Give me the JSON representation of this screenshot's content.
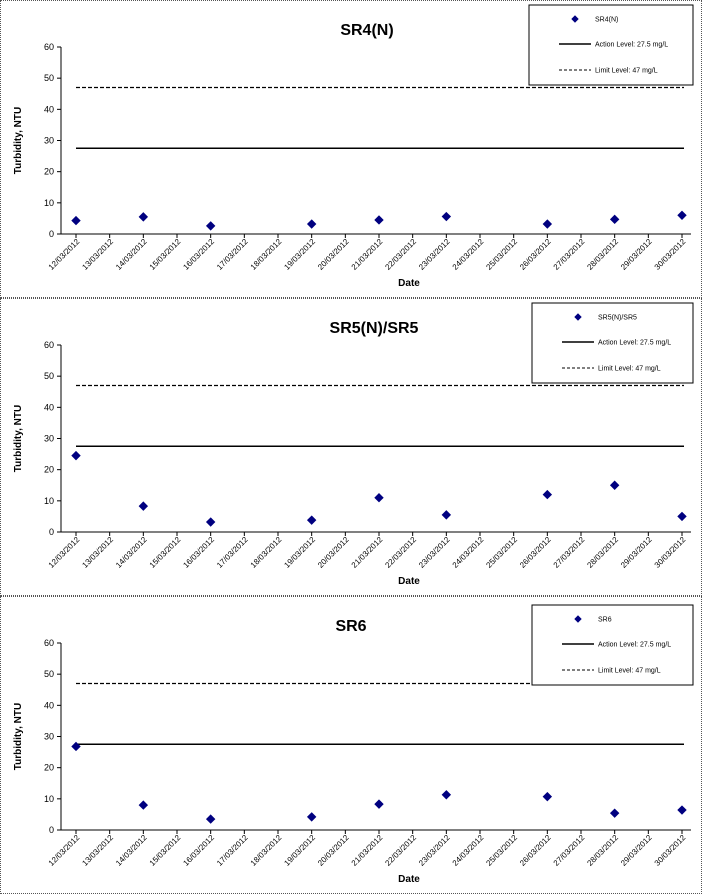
{
  "chart_data": [
    {
      "type": "scatter",
      "title": "SR4(N)",
      "xlabel": "Date",
      "ylabel": "Turbidity, NTU",
      "ylim": [
        0,
        60
      ],
      "yticks": [
        0,
        10,
        20,
        30,
        40,
        50,
        60
      ],
      "categories": [
        "12/03/2012",
        "13/03/2012",
        "14/03/2012",
        "15/03/2012",
        "16/03/2012",
        "17/03/2012",
        "18/03/2012",
        "19/03/2012",
        "20/03/2012",
        "21/03/2012",
        "22/03/2012",
        "23/03/2012",
        "24/03/2012",
        "25/03/2012",
        "26/03/2012",
        "27/03/2012",
        "28/03/2012",
        "29/03/2012",
        "30/03/2012"
      ],
      "series": [
        {
          "name": "SR4(N)",
          "marker": "diamond",
          "color": "#000080",
          "x": [
            "12/03/2012",
            "14/03/2012",
            "16/03/2012",
            "19/03/2012",
            "21/03/2012",
            "23/03/2012",
            "26/03/2012",
            "28/03/2012",
            "30/03/2012"
          ],
          "values": [
            4.3,
            5.5,
            2.6,
            3.2,
            4.5,
            5.6,
            3.2,
            4.7,
            6.0
          ]
        }
      ],
      "lines": [
        {
          "name": "Action Level: 27.5 mg/L",
          "value": 27.5,
          "style": "solid"
        },
        {
          "name": "Limit Level: 47 mg/L",
          "value": 47,
          "style": "dashed"
        }
      ],
      "legend_position": "top-right",
      "grid": false
    },
    {
      "type": "scatter",
      "title": "SR5(N)/SR5",
      "xlabel": "Date",
      "ylabel": "Turbidity, NTU",
      "ylim": [
        0,
        60
      ],
      "yticks": [
        0,
        10,
        20,
        30,
        40,
        50,
        60
      ],
      "categories": [
        "12/03/2012",
        "13/03/2012",
        "14/03/2012",
        "15/03/2012",
        "16/03/2012",
        "17/03/2012",
        "18/03/2012",
        "19/03/2012",
        "20/03/2012",
        "21/03/2012",
        "22/03/2012",
        "23/03/2012",
        "24/03/2012",
        "25/03/2012",
        "26/03/2012",
        "27/03/2012",
        "28/03/2012",
        "29/03/2012",
        "30/03/2012"
      ],
      "series": [
        {
          "name": "SR5(N)/SR5",
          "marker": "diamond",
          "color": "#000080",
          "x": [
            "12/03/2012",
            "14/03/2012",
            "16/03/2012",
            "19/03/2012",
            "21/03/2012",
            "23/03/2012",
            "26/03/2012",
            "28/03/2012",
            "30/03/2012"
          ],
          "values": [
            24.5,
            8.3,
            3.2,
            3.8,
            11.0,
            5.5,
            12.0,
            15.0,
            5.0
          ]
        }
      ],
      "lines": [
        {
          "name": "Action Level: 27.5 mg/L",
          "value": 27.5,
          "style": "solid"
        },
        {
          "name": "Limit Level: 47 mg/L",
          "value": 47,
          "style": "dashed"
        }
      ],
      "legend_position": "top-right",
      "grid": false
    },
    {
      "type": "scatter",
      "title": "SR6",
      "xlabel": "Date",
      "ylabel": "Turbidity, NTU",
      "ylim": [
        0,
        60
      ],
      "yticks": [
        0,
        10,
        20,
        30,
        40,
        50,
        60
      ],
      "categories": [
        "12/03/2012",
        "13/03/2012",
        "14/03/2012",
        "15/03/2012",
        "16/03/2012",
        "17/03/2012",
        "18/03/2012",
        "19/03/2012",
        "20/03/2012",
        "21/03/2012",
        "22/03/2012",
        "23/03/2012",
        "24/03/2012",
        "25/03/2012",
        "26/03/2012",
        "27/03/2012",
        "28/03/2012",
        "29/03/2012",
        "30/03/2012"
      ],
      "series": [
        {
          "name": "SR6",
          "marker": "diamond",
          "color": "#000080",
          "x": [
            "12/03/2012",
            "14/03/2012",
            "16/03/2012",
            "19/03/2012",
            "21/03/2012",
            "23/03/2012",
            "26/03/2012",
            "28/03/2012",
            "30/03/2012"
          ],
          "values": [
            26.8,
            8.0,
            3.5,
            4.2,
            8.3,
            11.3,
            10.7,
            5.4,
            6.4
          ]
        }
      ],
      "lines": [
        {
          "name": "Action Level: 27.5 mg/L",
          "value": 27.5,
          "style": "solid"
        },
        {
          "name": "Limit Level: 47 mg/L",
          "value": 47,
          "style": "dashed"
        }
      ],
      "legend_position": "top-right",
      "grid": false
    }
  ]
}
